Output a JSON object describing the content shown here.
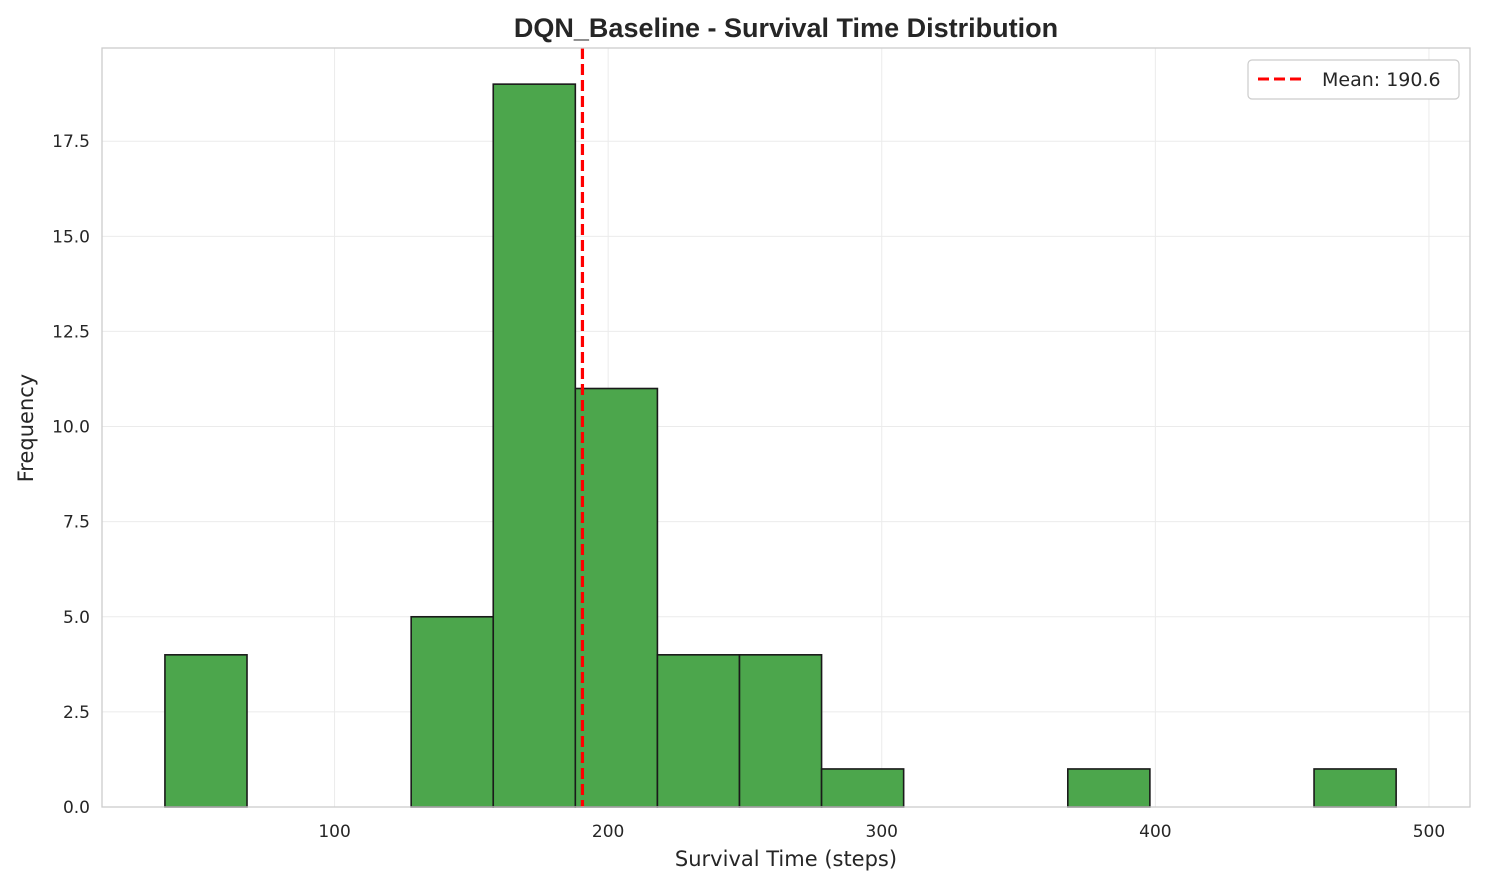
{
  "chart_data": {
    "type": "bar",
    "subtype": "histogram",
    "title": "DQN_Baseline - Survival Time Distribution",
    "xlabel": "Survival Time (steps)",
    "ylabel": "Frequency",
    "xlim": [
      15,
      515
    ],
    "ylim": [
      0,
      19.95
    ],
    "xticks": [
      100,
      200,
      300,
      400,
      500
    ],
    "yticks": [
      0.0,
      2.5,
      5.0,
      7.5,
      10.0,
      12.5,
      15.0,
      17.5
    ],
    "ytick_labels": [
      "0.0",
      "2.5",
      "5.0",
      "7.5",
      "10.0",
      "12.5",
      "15.0",
      "17.5"
    ],
    "bins": [
      {
        "start": 38,
        "end": 68,
        "count": 4
      },
      {
        "start": 68,
        "end": 98,
        "count": 0
      },
      {
        "start": 98,
        "end": 128,
        "count": 0
      },
      {
        "start": 128,
        "end": 158,
        "count": 5
      },
      {
        "start": 158,
        "end": 188,
        "count": 19
      },
      {
        "start": 188,
        "end": 218,
        "count": 11
      },
      {
        "start": 218,
        "end": 248,
        "count": 4
      },
      {
        "start": 248,
        "end": 278,
        "count": 4
      },
      {
        "start": 278,
        "end": 308,
        "count": 1
      },
      {
        "start": 308,
        "end": 338,
        "count": 0
      },
      {
        "start": 338,
        "end": 368,
        "count": 0
      },
      {
        "start": 368,
        "end": 398,
        "count": 1
      },
      {
        "start": 398,
        "end": 428,
        "count": 0
      },
      {
        "start": 428,
        "end": 458,
        "count": 0
      },
      {
        "start": 458,
        "end": 488,
        "count": 1
      }
    ],
    "mean": 190.6,
    "mean_label": "Mean: 190.6",
    "grid": true,
    "legend_position": "top-right",
    "colors": {
      "bar_fill": "#4ca64c",
      "bar_edge": "#1a1a1a",
      "mean_line": "#ff0000",
      "grid": "#ebebeb",
      "spine": "#cccccc"
    }
  }
}
